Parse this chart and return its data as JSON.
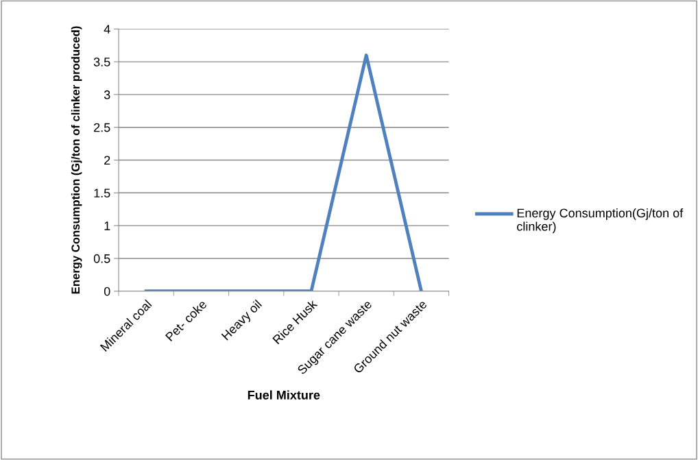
{
  "chart_data": {
    "type": "line",
    "xlabel": "Fuel Mixture",
    "ylabel": "Energy Consumption (Gj/ton of clinker produced)",
    "categories": [
      "Mineral coal",
      "Pet- coke",
      "Heavy oil",
      "Rice Husk",
      "Sugar cane waste",
      "Ground nut waste"
    ],
    "series": [
      {
        "name": "Energy Consumption(Gj/ton of clinker)",
        "color": "#4f81bd",
        "values": [
          0,
          0,
          0,
          0,
          3.6,
          0
        ]
      }
    ],
    "ylim": [
      0,
      4
    ],
    "yticks": [
      0,
      0.5,
      1,
      1.5,
      2,
      2.5,
      3,
      3.5,
      4
    ],
    "grid": "y",
    "legend": "right",
    "marker": "none",
    "line_style": "solid"
  }
}
